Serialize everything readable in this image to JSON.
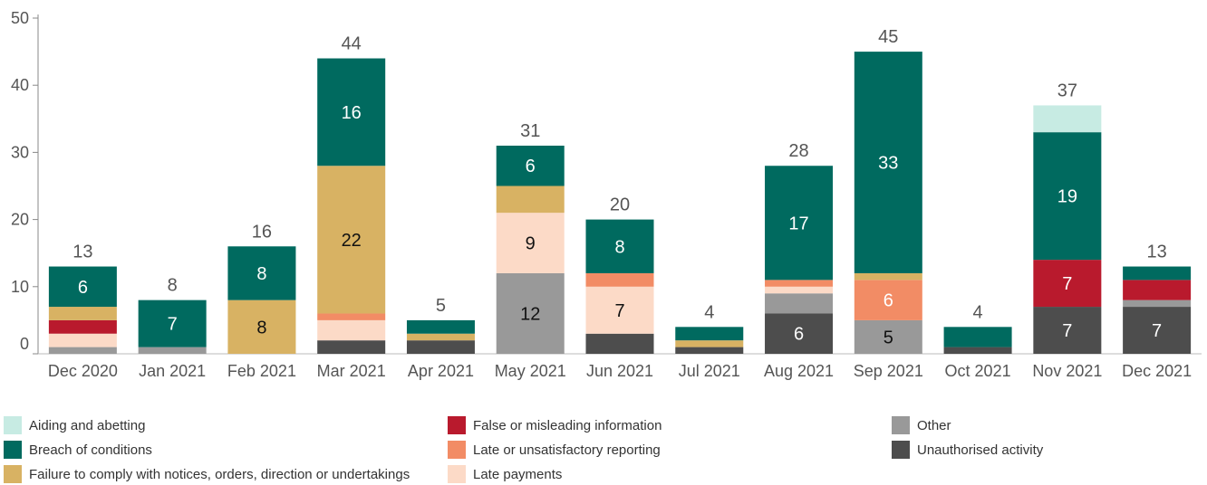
{
  "chart_data": {
    "type": "bar",
    "stacked": true,
    "title": "",
    "xlabel": "",
    "ylabel": "",
    "ylim": [
      0,
      50
    ],
    "yticks": [
      0,
      10,
      20,
      30,
      40,
      50
    ],
    "grid": false,
    "legend_position": "bottom",
    "categories": [
      "Dec 2020",
      "Jan 2021",
      "Feb 2021",
      "Mar 2021",
      "Apr 2021",
      "May 2021",
      "Jun 2021",
      "Jul 2021",
      "Aug 2021",
      "Sep 2021",
      "Oct 2021",
      "Nov 2021",
      "Dec 2021"
    ],
    "totals": [
      13,
      8,
      16,
      44,
      5,
      31,
      20,
      4,
      28,
      45,
      4,
      37,
      13
    ],
    "series": [
      {
        "name": "Unauthorised activity",
        "color": "#4d4d4d",
        "values": [
          0,
          0,
          0,
          2,
          2,
          0,
          3,
          1,
          6,
          0,
          1,
          7,
          7
        ]
      },
      {
        "name": "Other",
        "color": "#999999",
        "values": [
          1,
          1,
          0,
          0,
          0,
          12,
          0,
          0,
          3,
          5,
          0,
          0,
          1
        ]
      },
      {
        "name": "Late payments",
        "color": "#fcdac7",
        "values": [
          2,
          0,
          0,
          3,
          0,
          9,
          7,
          0,
          1,
          0,
          0,
          0,
          0
        ]
      },
      {
        "name": "Late or unsatisfactory reporting",
        "color": "#f28c65",
        "values": [
          0,
          0,
          0,
          1,
          0,
          0,
          2,
          0,
          1,
          6,
          0,
          0,
          0
        ]
      },
      {
        "name": "False or misleading information",
        "color": "#b91a2d",
        "values": [
          2,
          0,
          0,
          0,
          0,
          0,
          0,
          0,
          0,
          0,
          0,
          7,
          3
        ]
      },
      {
        "name": "Failure to comply with notices, orders, direction or undertakings",
        "color": "#d8b263",
        "values": [
          2,
          0,
          8,
          22,
          1,
          4,
          0,
          1,
          0,
          1,
          0,
          0,
          0
        ]
      },
      {
        "name": "Breach of conditions",
        "color": "#006a5f",
        "values": [
          6,
          7,
          8,
          16,
          2,
          6,
          8,
          2,
          17,
          33,
          3,
          19,
          2
        ]
      },
      {
        "name": "Aiding and abetting",
        "color": "#c7ebe3",
        "values": [
          0,
          0,
          0,
          0,
          0,
          0,
          0,
          0,
          0,
          0,
          0,
          4,
          0
        ]
      }
    ],
    "data_labels_shown_for": {
      "Unauthorised activity": [
        8,
        11,
        12
      ],
      "Other": [
        5,
        9
      ],
      "Late payments": [
        5,
        6
      ],
      "Late or unsatisfactory reporting": [
        9
      ],
      "False or misleading information": [
        11
      ],
      "Failure to comply with notices, orders, direction or undertakings": [
        2,
        3
      ],
      "Breach of conditions": [
        0,
        1,
        2,
        3,
        5,
        6,
        8,
        9,
        11
      ]
    }
  },
  "legend": {
    "items": [
      {
        "label": "Aiding and abetting",
        "color": "#c7ebe3"
      },
      {
        "label": "False or misleading information",
        "color": "#b91a2d"
      },
      {
        "label": "Other",
        "color": "#999999"
      },
      {
        "label": "Breach of conditions",
        "color": "#006a5f"
      },
      {
        "label": "Late or unsatisfactory reporting",
        "color": "#f28c65"
      },
      {
        "label": "Unauthorised activity",
        "color": "#4d4d4d"
      },
      {
        "label": "Failure to comply with notices, orders, direction or undertakings",
        "color": "#d8b263"
      },
      {
        "label": "Late payments",
        "color": "#fcdac7"
      }
    ]
  }
}
